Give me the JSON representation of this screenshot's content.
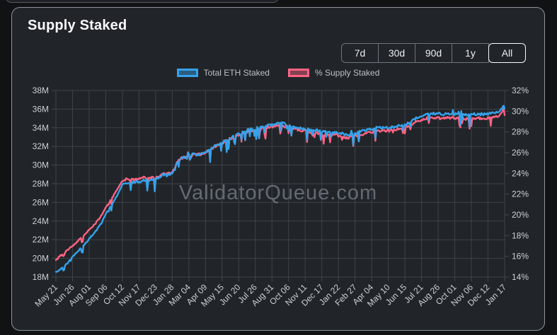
{
  "card": {
    "title": "Supply Staked"
  },
  "range_buttons": [
    {
      "label": "7d",
      "active": false
    },
    {
      "label": "30d",
      "active": false
    },
    {
      "label": "90d",
      "active": false
    },
    {
      "label": "1y",
      "active": false
    },
    {
      "label": "All",
      "active": true
    }
  ],
  "legend": [
    {
      "label": "Total ETH Staked",
      "color": "#36a2eb",
      "fill": "rgba(54,162,235,0.45)"
    },
    {
      "label": "% Supply Staked",
      "color": "#ff6384",
      "fill": "rgba(255,99,132,0.45)"
    }
  ],
  "watermark": "ValidatorQueue.com",
  "colors": {
    "card_background": "#212529",
    "page_background": "#101214",
    "grid": "#3e4347",
    "tick": "#45494d",
    "axis_text": "#cbd0d4",
    "title_text": "#f8f9fa",
    "blue_series": "#36a2eb",
    "pink_series": "#ff6384"
  },
  "chart_data": {
    "type": "line",
    "title": "Supply Staked",
    "grid": true,
    "legend_position": "top-center",
    "x_tick_labels": [
      "May 21",
      "Jun 26",
      "Aug 01",
      "Sep 06",
      "Oct 12",
      "Nov 17",
      "Dec 23",
      "Jan 28",
      "Mar 04",
      "Apr 09",
      "May 15",
      "Jun 20",
      "Jul 26",
      "Aug 31",
      "Oct 06",
      "Nov 11",
      "Dec 17",
      "Jan 22",
      "Feb 27",
      "Apr 04",
      "May 10",
      "Jun 15",
      "Jul 21",
      "Aug 26",
      "Oct 01",
      "Nov 06",
      "Dec 12",
      "Jan 17"
    ],
    "x_tick_spacing_days": 36,
    "x_range_days": [
      0,
      972
    ],
    "left_axis": {
      "unit": "M ETH",
      "range": [
        18,
        38
      ],
      "tick_labels": [
        "38M",
        "36M",
        "34M",
        "32M",
        "30M",
        "28M",
        "26M",
        "24M",
        "22M",
        "20M",
        "18M"
      ]
    },
    "right_axis": {
      "unit": "%",
      "range": [
        14,
        32
      ],
      "tick_labels": [
        "32%",
        "30%",
        "28%",
        "26%",
        "24%",
        "22%",
        "20%",
        "18%",
        "16%",
        "14%"
      ]
    },
    "series": [
      {
        "name": "Total ETH Staked",
        "axis": "left",
        "color": "#36a2eb",
        "unit": "million ETH",
        "keypoints": [
          [
            0,
            18.5
          ],
          [
            8,
            18.8
          ],
          [
            14,
            19.05
          ],
          [
            17,
            18.45
          ],
          [
            19,
            19.2
          ],
          [
            24,
            19.4
          ],
          [
            36,
            20.2
          ],
          [
            50,
            20.9
          ],
          [
            60,
            21.4
          ],
          [
            72,
            22.1
          ],
          [
            86,
            22.9
          ],
          [
            100,
            23.9
          ],
          [
            108,
            24.8
          ],
          [
            120,
            25.7
          ],
          [
            132,
            26.7
          ],
          [
            144,
            27.9
          ],
          [
            152,
            28.1
          ],
          [
            160,
            28.0
          ],
          [
            168,
            28.2
          ],
          [
            180,
            28.2
          ],
          [
            190,
            28.4
          ],
          [
            200,
            28.3
          ],
          [
            208,
            28.5
          ],
          [
            216,
            28.4
          ],
          [
            226,
            28.7
          ],
          [
            234,
            29.0
          ],
          [
            240,
            28.85
          ],
          [
            252,
            29.1
          ],
          [
            262,
            30.2
          ],
          [
            270,
            30.7
          ],
          [
            278,
            30.9
          ],
          [
            284,
            30.7
          ],
          [
            287,
            31.5
          ],
          [
            290,
            30.5
          ],
          [
            296,
            31.2
          ],
          [
            304,
            31.1
          ],
          [
            312,
            31.2
          ],
          [
            324,
            31.3
          ],
          [
            336,
            31.8
          ],
          [
            348,
            32.1
          ],
          [
            360,
            32.4
          ],
          [
            372,
            32.8
          ],
          [
            384,
            33.1
          ],
          [
            396,
            33.3
          ],
          [
            410,
            33.7
          ],
          [
            420,
            33.8
          ],
          [
            432,
            33.9
          ],
          [
            444,
            34.1
          ],
          [
            456,
            34.2
          ],
          [
            468,
            34.3
          ],
          [
            480,
            34.45
          ],
          [
            490,
            34.5
          ],
          [
            504,
            34.2
          ],
          [
            516,
            34.1
          ],
          [
            528,
            34.0
          ],
          [
            540,
            33.9
          ],
          [
            552,
            33.75
          ],
          [
            564,
            33.7
          ],
          [
            576,
            33.6
          ],
          [
            590,
            33.55
          ],
          [
            604,
            33.5
          ],
          [
            612,
            33.45
          ],
          [
            624,
            33.3
          ],
          [
            632,
            33.2
          ],
          [
            640,
            33.3
          ],
          [
            648,
            33.4
          ],
          [
            660,
            33.6
          ],
          [
            672,
            33.75
          ],
          [
            684,
            33.9
          ],
          [
            696,
            33.95
          ],
          [
            708,
            34.0
          ],
          [
            720,
            34.0
          ],
          [
            732,
            34.1
          ],
          [
            744,
            34.2
          ],
          [
            756,
            34.3
          ],
          [
            768,
            34.7
          ],
          [
            780,
            35.0
          ],
          [
            792,
            35.2
          ],
          [
            804,
            35.45
          ],
          [
            816,
            35.5
          ],
          [
            828,
            35.5
          ],
          [
            840,
            35.45
          ],
          [
            852,
            35.5
          ],
          [
            864,
            35.5
          ],
          [
            876,
            35.45
          ],
          [
            888,
            35.4
          ],
          [
            900,
            35.45
          ],
          [
            912,
            35.5
          ],
          [
            924,
            35.45
          ],
          [
            936,
            35.5
          ],
          [
            948,
            35.55
          ],
          [
            958,
            35.7
          ],
          [
            964,
            35.9
          ],
          [
            968,
            36.35
          ],
          [
            970,
            36.45
          ],
          [
            972,
            35.95
          ]
        ]
      },
      {
        "name": "% Supply Staked",
        "axis": "right",
        "color": "#ff6384",
        "unit": "%",
        "keypoints": [
          [
            0,
            15.6
          ],
          [
            8,
            16.0
          ],
          [
            14,
            16.2
          ],
          [
            17,
            15.95
          ],
          [
            19,
            16.35
          ],
          [
            24,
            16.55
          ],
          [
            36,
            17.0
          ],
          [
            50,
            17.6
          ],
          [
            60,
            18.0
          ],
          [
            72,
            18.55
          ],
          [
            86,
            19.2
          ],
          [
            100,
            20.0
          ],
          [
            108,
            20.75
          ],
          [
            120,
            21.5
          ],
          [
            132,
            22.4
          ],
          [
            144,
            23.3
          ],
          [
            152,
            23.45
          ],
          [
            160,
            23.35
          ],
          [
            168,
            23.45
          ],
          [
            180,
            23.45
          ],
          [
            190,
            23.6
          ],
          [
            200,
            23.5
          ],
          [
            208,
            23.65
          ],
          [
            216,
            23.55
          ],
          [
            226,
            23.8
          ],
          [
            234,
            24.05
          ],
          [
            240,
            23.9
          ],
          [
            252,
            24.1
          ],
          [
            262,
            25.0
          ],
          [
            270,
            25.4
          ],
          [
            278,
            25.6
          ],
          [
            284,
            25.45
          ],
          [
            287,
            26.15
          ],
          [
            290,
            25.3
          ],
          [
            296,
            25.85
          ],
          [
            304,
            25.8
          ],
          [
            312,
            25.85
          ],
          [
            324,
            25.95
          ],
          [
            336,
            26.4
          ],
          [
            348,
            26.65
          ],
          [
            360,
            26.9
          ],
          [
            372,
            27.25
          ],
          [
            384,
            27.5
          ],
          [
            396,
            27.65
          ],
          [
            410,
            28.0
          ],
          [
            420,
            28.1
          ],
          [
            432,
            28.15
          ],
          [
            444,
            28.3
          ],
          [
            456,
            28.4
          ],
          [
            468,
            28.5
          ],
          [
            480,
            28.6
          ],
          [
            490,
            28.65
          ],
          [
            504,
            28.4
          ],
          [
            516,
            28.3
          ],
          [
            528,
            28.2
          ],
          [
            540,
            28.1
          ],
          [
            552,
            27.95
          ],
          [
            564,
            27.9
          ],
          [
            576,
            27.8
          ],
          [
            590,
            27.75
          ],
          [
            604,
            27.7
          ],
          [
            612,
            27.65
          ],
          [
            624,
            27.5
          ],
          [
            632,
            27.4
          ],
          [
            640,
            27.5
          ],
          [
            648,
            27.6
          ],
          [
            660,
            27.75
          ],
          [
            672,
            27.9
          ],
          [
            684,
            28.0
          ],
          [
            696,
            28.05
          ],
          [
            708,
            28.1
          ],
          [
            720,
            28.1
          ],
          [
            732,
            28.2
          ],
          [
            744,
            28.3
          ],
          [
            756,
            28.35
          ],
          [
            768,
            28.7
          ],
          [
            780,
            28.95
          ],
          [
            792,
            29.1
          ],
          [
            804,
            29.3
          ],
          [
            816,
            29.35
          ],
          [
            828,
            29.35
          ],
          [
            840,
            29.3
          ],
          [
            852,
            29.35
          ],
          [
            864,
            29.35
          ],
          [
            876,
            29.3
          ],
          [
            888,
            29.25
          ],
          [
            900,
            29.3
          ],
          [
            912,
            29.35
          ],
          [
            924,
            29.3
          ],
          [
            936,
            29.35
          ],
          [
            948,
            29.4
          ],
          [
            958,
            29.5
          ],
          [
            964,
            29.7
          ],
          [
            968,
            30.1
          ],
          [
            970,
            30.15
          ],
          [
            972,
            29.55
          ]
        ]
      }
    ]
  }
}
